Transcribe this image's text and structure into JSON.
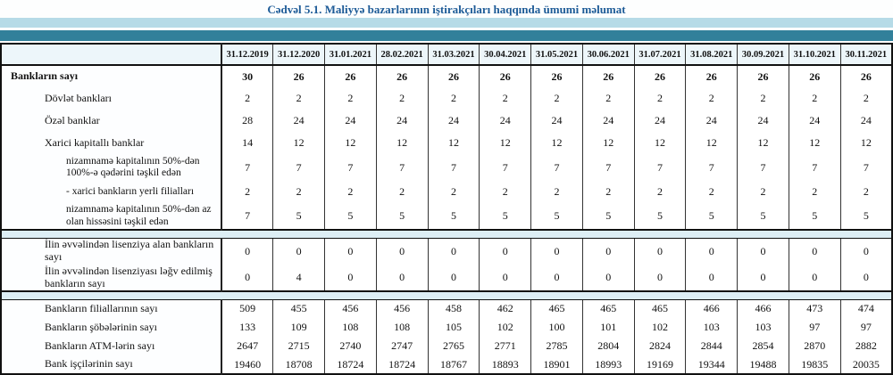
{
  "page": {
    "title": "Cədvəl 5.1. Maliyyə bazarlarının iştirakçıları haqqında ümumi məlumat"
  },
  "colors": {
    "title": "#1d5b97",
    "band_light": "#b6dbe7",
    "band_teal": "#32809a",
    "separator_band": "#ddeef5",
    "header_bg": "#edf6fa",
    "border": "#111111"
  },
  "chart_data": {
    "type": "table",
    "title": "Cədvəl 5.1. Maliyyə bazarlarının iştirakçıları haqqında ümumi məlumat",
    "categories": [
      "31.12.2019",
      "31.12.2020",
      "31.01.2021",
      "28.02.2021",
      "31.03.2021",
      "30.04.2021",
      "31.05.2021",
      "30.06.2021",
      "31.07.2021",
      "31.08.2021",
      "30.09.2021",
      "31.10.2021",
      "30.11.2021"
    ],
    "series": [
      {
        "name": "Bankların sayı",
        "values": [
          30,
          26,
          26,
          26,
          26,
          26,
          26,
          26,
          26,
          26,
          26,
          26,
          26
        ]
      },
      {
        "name": "Dövlət bankları",
        "values": [
          2,
          2,
          2,
          2,
          2,
          2,
          2,
          2,
          2,
          2,
          2,
          2,
          2
        ]
      },
      {
        "name": "Özəl banklar",
        "values": [
          28,
          24,
          24,
          24,
          24,
          24,
          24,
          24,
          24,
          24,
          24,
          24,
          24
        ]
      },
      {
        "name": "Xarici kapitallı banklar",
        "values": [
          14,
          12,
          12,
          12,
          12,
          12,
          12,
          12,
          12,
          12,
          12,
          12,
          12
        ]
      },
      {
        "name": "nizamnamə kapitalının 50%-dən 100%-ə qədərini təşkil edən",
        "values": [
          7,
          7,
          7,
          7,
          7,
          7,
          7,
          7,
          7,
          7,
          7,
          7,
          7
        ]
      },
      {
        "name": "- xarici bankların yerli filialları",
        "values": [
          2,
          2,
          2,
          2,
          2,
          2,
          2,
          2,
          2,
          2,
          2,
          2,
          2
        ]
      },
      {
        "name": "nizamnamə kapitalının 50%-dən az olan hissəsini təşkil edən",
        "values": [
          7,
          5,
          5,
          5,
          5,
          5,
          5,
          5,
          5,
          5,
          5,
          5,
          5
        ]
      },
      {
        "name": "İlin əvvəlindən lisenziya alan bankların sayı",
        "values": [
          0,
          0,
          0,
          0,
          0,
          0,
          0,
          0,
          0,
          0,
          0,
          0,
          0
        ]
      },
      {
        "name": "İlin əvvəlindən lisenziyası ləğv edilmiş bankların sayı",
        "values": [
          0,
          4,
          0,
          0,
          0,
          0,
          0,
          0,
          0,
          0,
          0,
          0,
          0
        ]
      },
      {
        "name": "Bankların filiallarının sayı",
        "values": [
          509,
          455,
          456,
          456,
          458,
          462,
          465,
          465,
          465,
          466,
          466,
          473,
          474
        ]
      },
      {
        "name": "Bankların şöbələrinin sayı",
        "values": [
          133,
          109,
          108,
          108,
          105,
          102,
          100,
          101,
          102,
          103,
          103,
          97,
          97
        ]
      },
      {
        "name": "Bankların ATM-lərin sayı",
        "values": [
          2647,
          2715,
          2740,
          2747,
          2765,
          2771,
          2785,
          2804,
          2824,
          2844,
          2854,
          2870,
          2882
        ]
      },
      {
        "name": "Bank işçilərinin sayı",
        "values": [
          19460,
          18708,
          18724,
          18724,
          18767,
          18893,
          18901,
          18993,
          19169,
          19344,
          19488,
          19835,
          20035
        ]
      }
    ]
  },
  "table": {
    "columns": [
      "31.12.2019",
      "31.12.2020",
      "31.01.2021",
      "28.02.2021",
      "31.03.2021",
      "30.04.2021",
      "31.05.2021",
      "30.06.2021",
      "31.07.2021",
      "31.08.2021",
      "30.09.2021",
      "31.10.2021",
      "30.11.2021"
    ],
    "sections": [
      {
        "rows": [
          {
            "label": "Bankların sayı",
            "level": 0,
            "bold": true,
            "values": [
              30,
              26,
              26,
              26,
              26,
              26,
              26,
              26,
              26,
              26,
              26,
              26,
              26
            ]
          },
          {
            "label": "Dövlət bankları",
            "level": 1,
            "bold": false,
            "values": [
              2,
              2,
              2,
              2,
              2,
              2,
              2,
              2,
              2,
              2,
              2,
              2,
              2
            ]
          },
          {
            "label": "Özəl banklar",
            "level": 1,
            "bold": false,
            "values": [
              28,
              24,
              24,
              24,
              24,
              24,
              24,
              24,
              24,
              24,
              24,
              24,
              24
            ]
          },
          {
            "label": "Xarici kapitallı banklar",
            "level": 1,
            "bold": false,
            "values": [
              14,
              12,
              12,
              12,
              12,
              12,
              12,
              12,
              12,
              12,
              12,
              12,
              12
            ]
          },
          {
            "label": "nizamnamə kapitalının 50%-dən 100%-ə qədərini təşkil edən",
            "level": 2,
            "bold": false,
            "values": [
              7,
              7,
              7,
              7,
              7,
              7,
              7,
              7,
              7,
              7,
              7,
              7,
              7
            ]
          },
          {
            "label": "- xarici bankların yerli filialları",
            "level": 2,
            "bold": false,
            "values": [
              2,
              2,
              2,
              2,
              2,
              2,
              2,
              2,
              2,
              2,
              2,
              2,
              2
            ]
          },
          {
            "label": "nizamnamə kapitalının 50%-dən az olan hissəsini təşkil edən",
            "level": 2,
            "bold": false,
            "values": [
              7,
              5,
              5,
              5,
              5,
              5,
              5,
              5,
              5,
              5,
              5,
              5,
              5
            ]
          }
        ]
      },
      {
        "rows": [
          {
            "label": "İlin əvvəlindən lisenziya alan bankların sayı",
            "level": 1,
            "bold": false,
            "values": [
              0,
              0,
              0,
              0,
              0,
              0,
              0,
              0,
              0,
              0,
              0,
              0,
              0
            ]
          },
          {
            "label": "İlin əvvəlindən lisenziyası ləğv edilmiş bankların sayı",
            "level": 1,
            "bold": false,
            "values": [
              0,
              4,
              0,
              0,
              0,
              0,
              0,
              0,
              0,
              0,
              0,
              0,
              0
            ]
          }
        ]
      },
      {
        "rows": [
          {
            "label": "Bankların filiallarının sayı",
            "level": 1,
            "bold": false,
            "values": [
              509,
              455,
              456,
              456,
              458,
              462,
              465,
              465,
              465,
              466,
              466,
              473,
              474
            ]
          },
          {
            "label": "Bankların şöbələrinin sayı",
            "level": 1,
            "bold": false,
            "values": [
              133,
              109,
              108,
              108,
              105,
              102,
              100,
              101,
              102,
              103,
              103,
              97,
              97
            ]
          },
          {
            "label": "Bankların ATM-lərin sayı",
            "level": 1,
            "bold": false,
            "values": [
              2647,
              2715,
              2740,
              2747,
              2765,
              2771,
              2785,
              2804,
              2824,
              2844,
              2854,
              2870,
              2882
            ]
          },
          {
            "label": "Bank işçilərinin sayı",
            "level": 1,
            "bold": false,
            "values": [
              19460,
              18708,
              18724,
              18724,
              18767,
              18893,
              18901,
              18993,
              19169,
              19344,
              19488,
              19835,
              20035
            ]
          }
        ]
      }
    ]
  }
}
